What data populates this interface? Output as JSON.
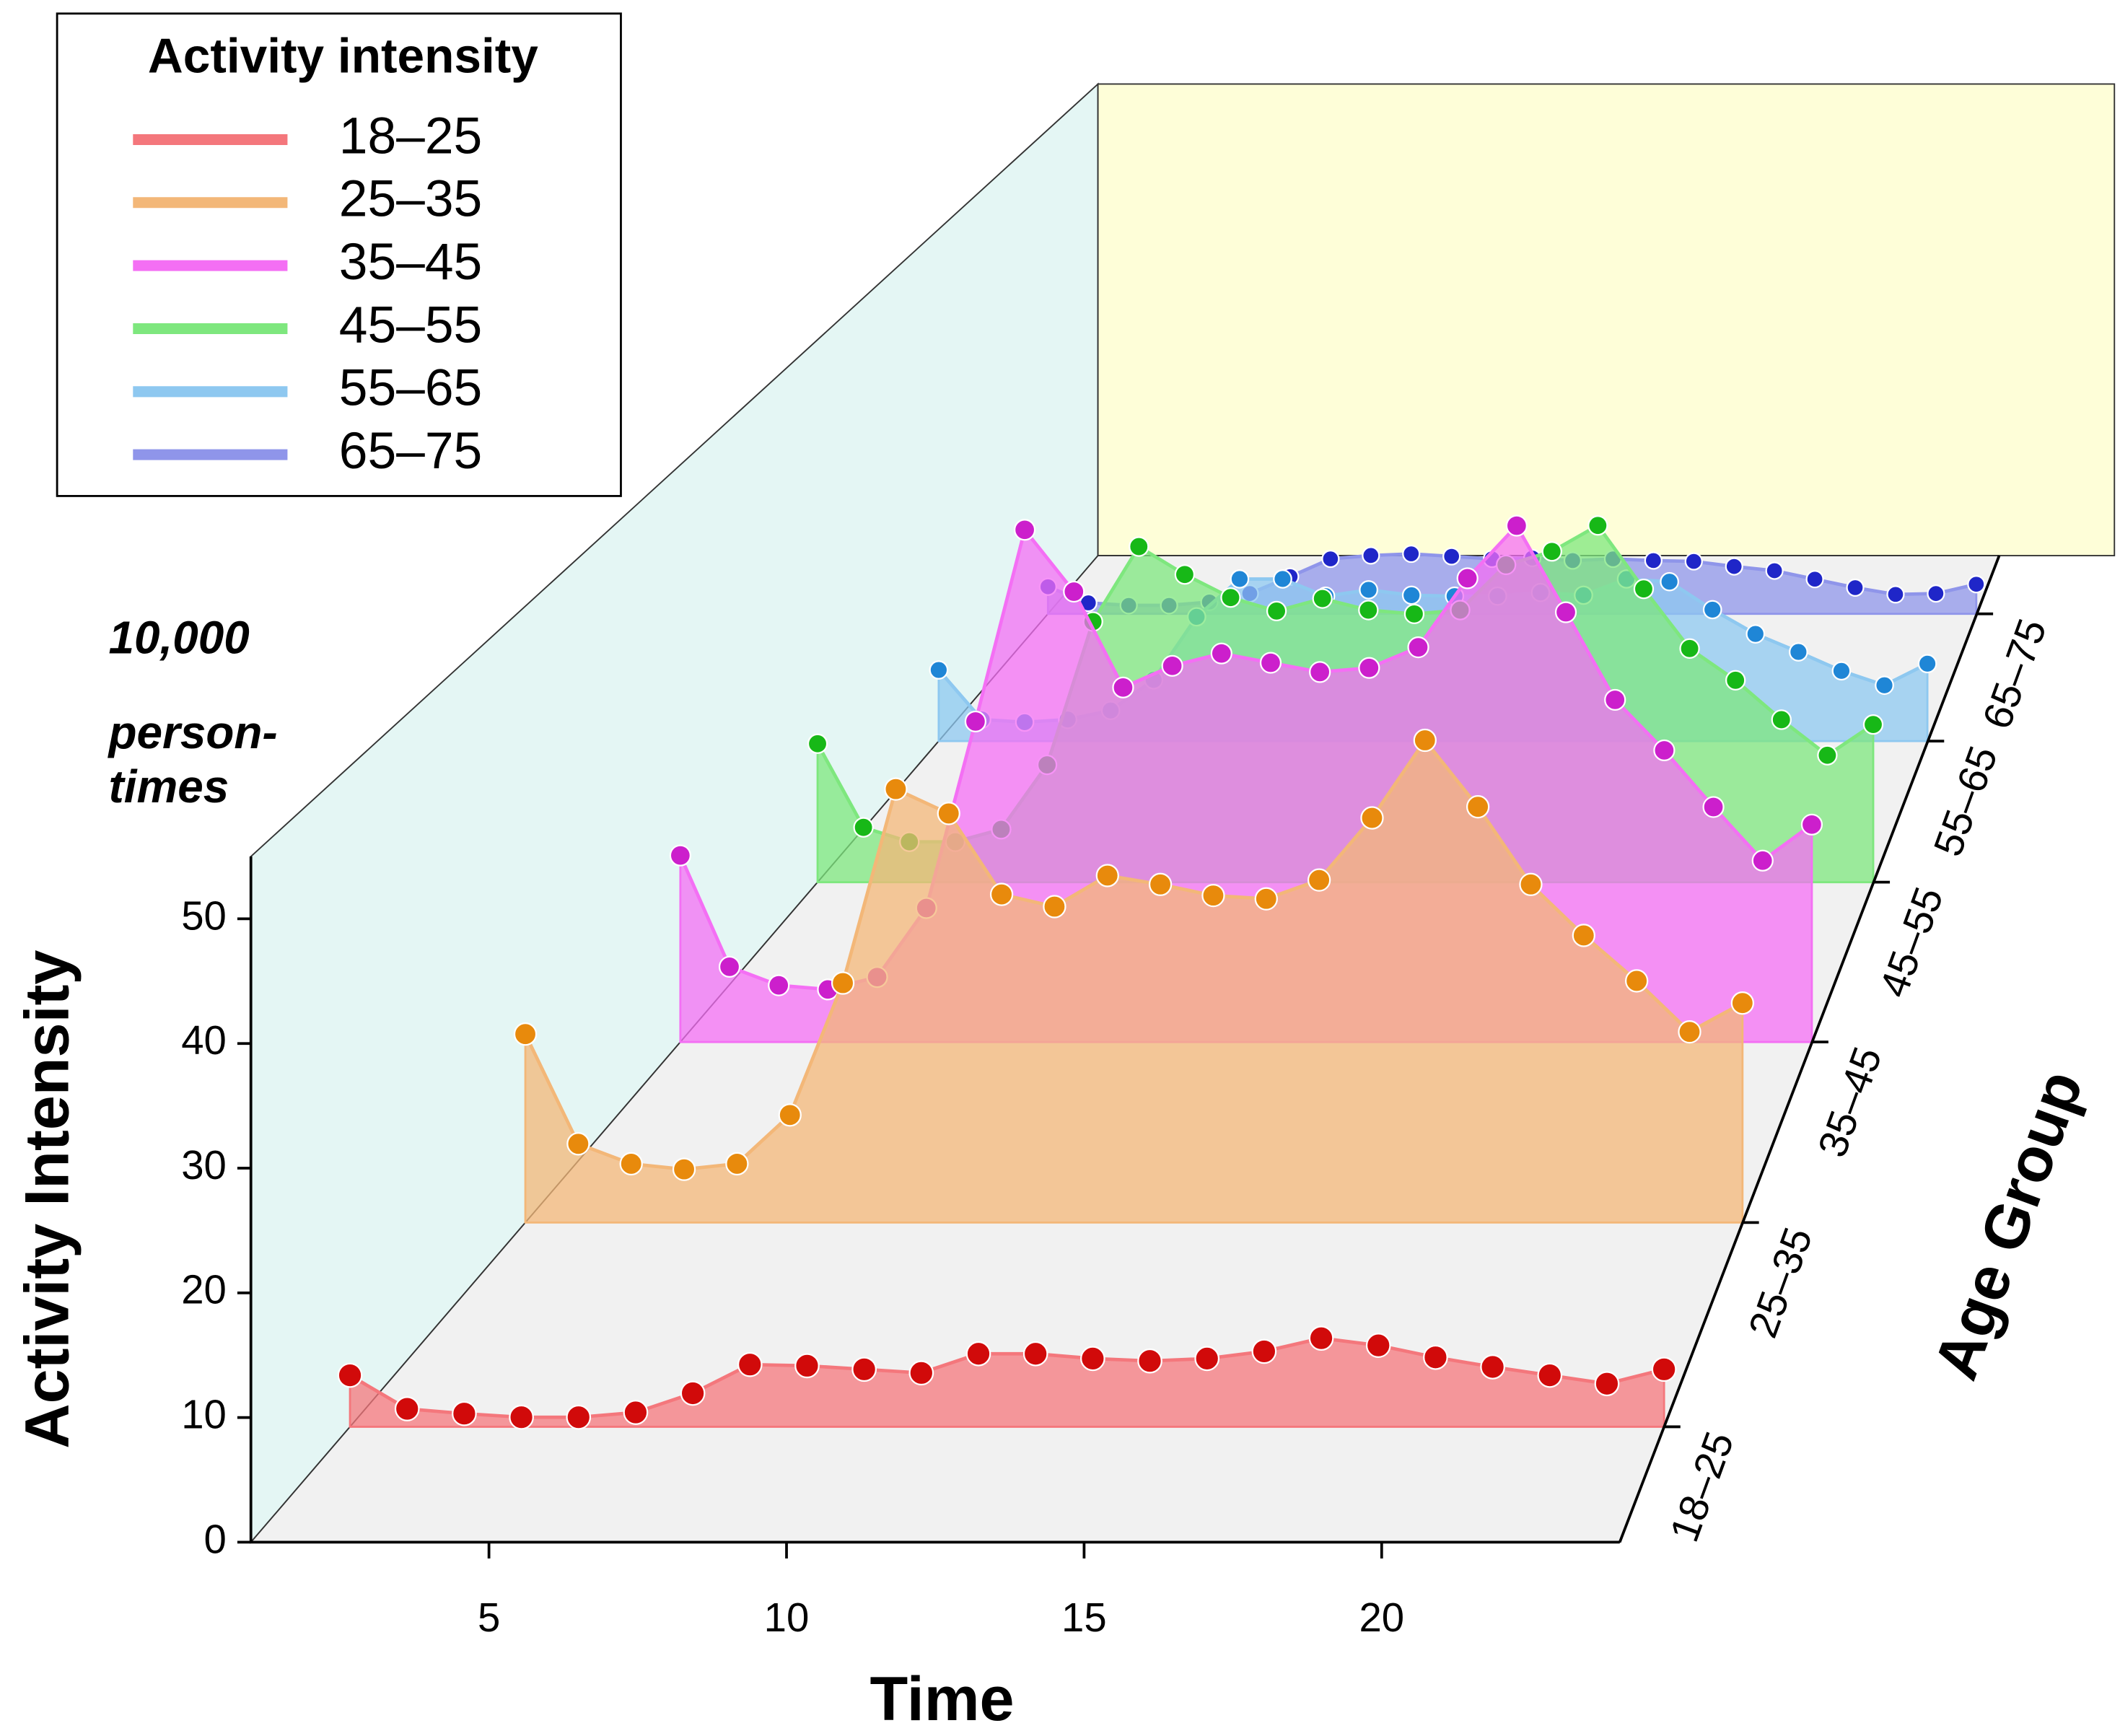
{
  "chart_data": {
    "type": "waterfall3d",
    "legend_title": "Activity intensity",
    "ylabel": "Activity Intensity",
    "xlabel": "Time",
    "zlabel": "Age Group",
    "annotation": [
      "10,000",
      "person-",
      "times"
    ],
    "x": [
      1,
      2,
      3,
      4,
      5,
      6,
      7,
      8,
      9,
      10,
      11,
      12,
      13,
      14,
      15,
      16,
      17,
      18,
      19,
      20,
      21,
      22,
      23,
      24
    ],
    "xlim": [
      1,
      24
    ],
    "xticks": [
      5,
      10,
      15,
      20
    ],
    "ylim": [
      0,
      55
    ],
    "yticks": [
      0,
      10,
      20,
      30,
      40,
      50
    ],
    "series": [
      {
        "name": "18–25",
        "color": "#f4777c",
        "marker_color": "#d10a0a",
        "values": [
          4.3,
          1.5,
          1.1,
          0.8,
          0.8,
          1.2,
          2.8,
          5.2,
          5.1,
          4.8,
          4.5,
          6.1,
          6.1,
          5.7,
          5.5,
          5.7,
          6.3,
          7.4,
          6.8,
          5.8,
          5.0,
          4.3,
          3.6,
          4.8
        ]
      },
      {
        "name": "25–35",
        "color": "#f3b778",
        "marker_color": "#e88a0c",
        "values": [
          17.0,
          7.1,
          5.3,
          4.8,
          5.3,
          9.7,
          21.6,
          39.1,
          36.9,
          29.6,
          28.5,
          31.3,
          30.5,
          29.5,
          29.2,
          30.9,
          36.5,
          43.5,
          37.5,
          30.5,
          25.9,
          21.8,
          17.2,
          19.8
        ]
      },
      {
        "name": "35–45",
        "color": "#f46ff4",
        "marker_color": "#cc1fcc",
        "values": [
          18.1,
          7.3,
          5.5,
          5.1,
          6.3,
          13.0,
          31.1,
          49.7,
          43.7,
          34.4,
          36.5,
          37.7,
          36.8,
          35.9,
          36.3,
          38.3,
          45.0,
          50.1,
          41.7,
          33.2,
          28.3,
          22.8,
          17.6,
          21.1
        ]
      },
      {
        "name": "45–55",
        "color": "#7ee77e",
        "marker_color": "#17b817",
        "values": [
          14.4,
          5.7,
          4.2,
          4.2,
          5.5,
          12.2,
          27.1,
          34.9,
          32.0,
          29.6,
          28.2,
          29.5,
          28.3,
          27.9,
          28.3,
          33.0,
          34.4,
          37.1,
          30.5,
          24.3,
          21.0,
          16.9,
          13.2,
          16.4
        ]
      },
      {
        "name": "55–65",
        "color": "#8ec8f0",
        "marker_color": "#1f86d6",
        "values": [
          7.9,
          2.4,
          2.1,
          2.4,
          3.4,
          6.8,
          13.8,
          18.0,
          18.0,
          16.1,
          16.8,
          16.2,
          16.1,
          16.1,
          16.5,
          16.2,
          18.0,
          17.7,
          14.6,
          11.9,
          9.9,
          7.8,
          6.2,
          8.6
        ]
      },
      {
        "name": "65–75",
        "color": "#8f95ea",
        "marker_color": "#1f26c8",
        "values": [
          3.2,
          1.3,
          1.0,
          1.0,
          1.4,
          2.4,
          4.4,
          6.5,
          6.9,
          7.1,
          6.8,
          6.5,
          6.6,
          6.3,
          6.5,
          6.3,
          6.2,
          5.6,
          5.1,
          4.1,
          3.1,
          2.3,
          2.4,
          3.5
        ]
      }
    ]
  }
}
